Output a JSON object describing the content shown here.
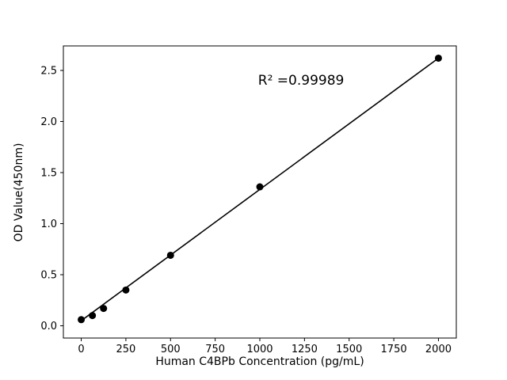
{
  "chart_data": {
    "type": "scatter",
    "title": "",
    "xlabel": "Human C4BPb Concentration (pg/mL)",
    "ylabel": "OD Value(450nm)",
    "annotation": "R² =0.99989",
    "annotation_pos": {
      "x": 0.605,
      "y": 0.117
    },
    "x": [
      0,
      62.5,
      125,
      250,
      500,
      1000,
      2000
    ],
    "y": [
      0.06,
      0.1,
      0.17,
      0.35,
      0.69,
      1.36,
      2.62
    ],
    "trendline": {
      "x": [
        0,
        2000
      ],
      "y": [
        0.05,
        2.62
      ]
    },
    "xlim": [
      -100,
      2100
    ],
    "ylim": [
      -0.12,
      2.74
    ],
    "xticks": [
      0,
      250,
      500,
      750,
      1000,
      1250,
      1500,
      1750,
      2000
    ],
    "yticks": [
      0.0,
      0.5,
      1.0,
      1.5,
      2.0,
      2.5
    ],
    "grid": false,
    "legend": "none",
    "marker_color": "#000000",
    "line_color": "#000000",
    "axis_color": "#000000",
    "background_color": "#ffffff"
  }
}
